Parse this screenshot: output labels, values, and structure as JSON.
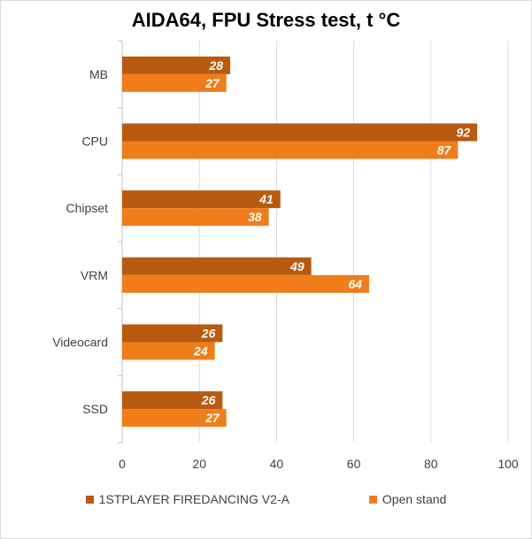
{
  "chart_data": {
    "type": "bar",
    "orientation": "horizontal",
    "title": "AIDA64, FPU Stress test, t °C",
    "categories": [
      "MB",
      "CPU",
      "Chipset",
      "VRM",
      "Videocard",
      "SSD"
    ],
    "series": [
      {
        "name": "1STPLAYER FIREDANCING V2-A",
        "color": "#b85a10",
        "values": [
          28,
          92,
          41,
          49,
          26,
          26
        ]
      },
      {
        "name": "Open stand",
        "color": "#ee7d1a",
        "values": [
          27,
          87,
          38,
          64,
          24,
          27
        ]
      }
    ],
    "xlim": [
      0,
      100
    ],
    "xticks": [
      0,
      20,
      40,
      60,
      80,
      100
    ],
    "grid": true,
    "legend_position": "bottom",
    "data_labels": true
  }
}
